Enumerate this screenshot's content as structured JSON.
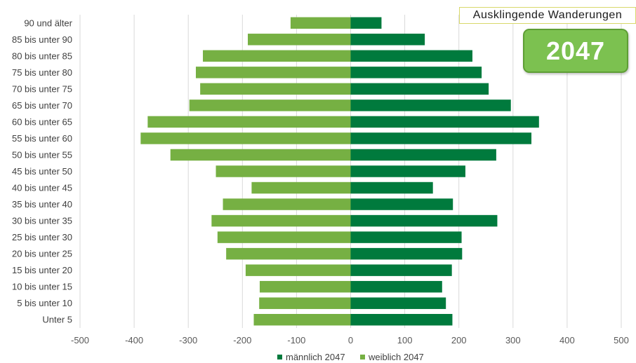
{
  "header": {
    "scenario_label": "Ausklingende Wanderungen",
    "year_badge": "2047"
  },
  "chart_data": {
    "type": "bar",
    "orientation": "horizontal",
    "layout": "population-pyramid",
    "categories": [
      "90 und älter",
      "85 bis unter 90",
      "80 bis unter 85",
      "75 bis unter 80",
      "70 bis unter 75",
      "65 bis unter 70",
      "60 bis unter 65",
      "55 bis unter 60",
      "50 bis unter 55",
      "45 bis unter 50",
      "40 bis unter 45",
      "35 bis unter 40",
      "30 bis unter 35",
      "25 bis unter 30",
      "20 bis unter 25",
      "15 bis unter 20",
      "10 bis unter 15",
      "5 bis unter 10",
      "Unter 5"
    ],
    "series": [
      {
        "name": "männlich 2047",
        "color": "#007a3d",
        "values": [
          57,
          137,
          225,
          242,
          255,
          296,
          348,
          334,
          269,
          212,
          152,
          189,
          271,
          205,
          206,
          187,
          169,
          176,
          188
        ]
      },
      {
        "name": "weiblich 2047",
        "color": "#76b043",
        "values": [
          -111,
          -190,
          -273,
          -286,
          -278,
          -298,
          -375,
          -388,
          -333,
          -249,
          -183,
          -236,
          -257,
          -246,
          -230,
          -194,
          -168,
          -169,
          -179
        ]
      }
    ],
    "xlim": [
      -500,
      500
    ],
    "xticks": [
      -500,
      -400,
      -300,
      -200,
      -100,
      0,
      100,
      200,
      300,
      400,
      500
    ],
    "grid": "vertical",
    "legend_position": "bottom"
  }
}
